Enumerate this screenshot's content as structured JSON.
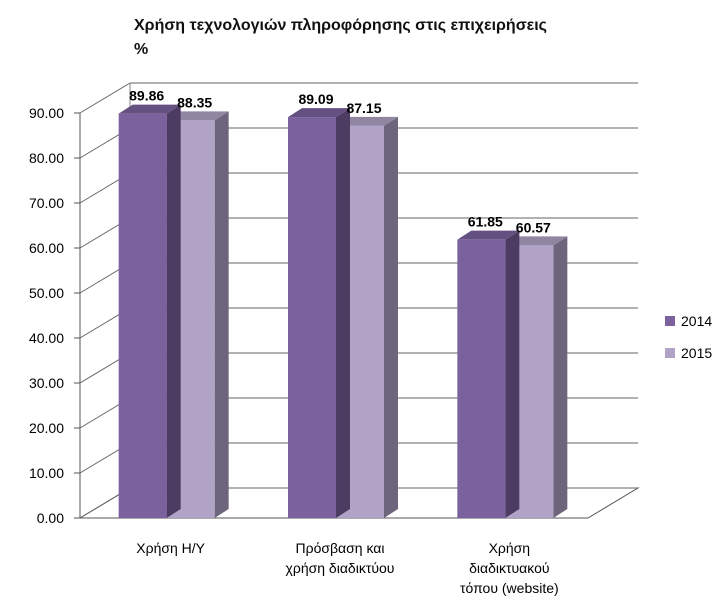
{
  "chart_data": {
    "type": "bar",
    "title": "Χρήση τεχνολογιών πληροφόρησης στις επιχειρήσεις",
    "subtitle": "%",
    "categories": [
      [
        "Χρήση Η/Υ"
      ],
      [
        "Πρόσβαση και",
        "χρήση διαδικτύου"
      ],
      [
        "Χρήση",
        "διαδικτυακού",
        "τόπου (website)"
      ]
    ],
    "series": [
      {
        "name": "2014",
        "values": [
          89.86,
          89.09,
          61.85
        ],
        "labels": [
          "89.86",
          "89.09",
          "61.85"
        ],
        "color": "#7b619e"
      },
      {
        "name": "2015",
        "values": [
          88.35,
          87.15,
          60.57
        ],
        "labels": [
          "88.35",
          "87.15",
          "60.57"
        ],
        "color": "#b0a3c6"
      }
    ],
    "ylim": [
      0,
      90
    ],
    "yticks": [
      "0.00",
      "10.00",
      "20.00",
      "30.00",
      "40.00",
      "50.00",
      "60.00",
      "70.00",
      "80.00",
      "90.00"
    ],
    "ytick_values": [
      0,
      10,
      20,
      30,
      40,
      50,
      60,
      70,
      80,
      90
    ],
    "grid": true,
    "legend_position": "right",
    "three_d": true
  }
}
